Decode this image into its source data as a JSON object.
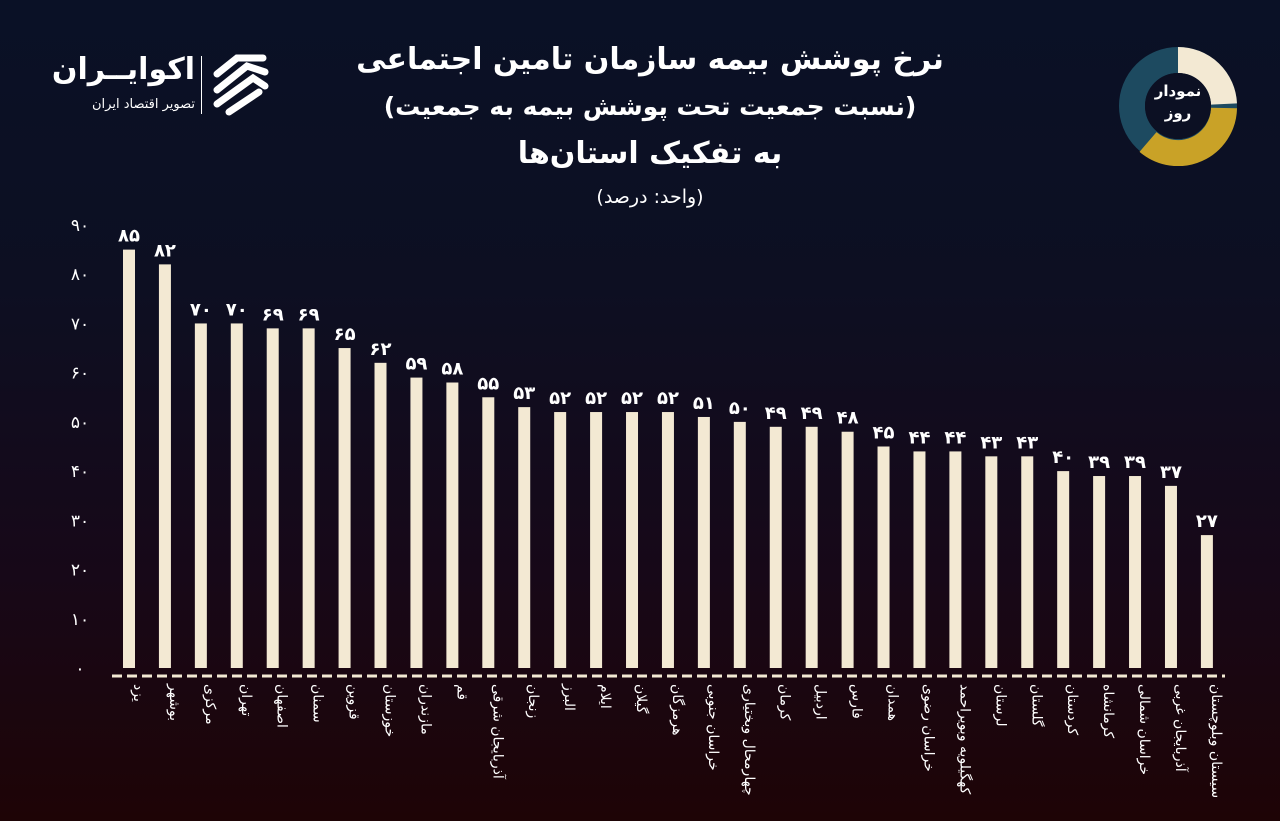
{
  "header": {
    "title_line1": "نرخ پوشش بیمه سازمان تامین اجتماعی",
    "title_line2": "(نسبت جمعیت تحت پوشش بیمه به جمعیت)",
    "title_line3": "به تفکیک استان‌ها",
    "unit": "(واحد: درصد)"
  },
  "logo": {
    "name": "اکوایــران",
    "tagline": "تصویر اقتصاد ایران"
  },
  "badge": {
    "line1": "نمودار",
    "line2": "روز"
  },
  "colors": {
    "bar": "#f3e9d3",
    "badge_cream": "#f3e9d3",
    "badge_gold": "#c9a227",
    "badge_teal": "#1d4a60"
  },
  "chart_data": {
    "type": "bar",
    "title": "نرخ پوشش بیمه سازمان تامین اجتماعی (نسبت جمعیت تحت پوشش بیمه به جمعیت) به تفکیک استان‌ها",
    "ylabel": "(واحد: درصد)",
    "ylim": [
      0,
      90
    ],
    "yticks": [
      0,
      10,
      20,
      30,
      40,
      50,
      60,
      70,
      80,
      90
    ],
    "grid": false,
    "digits": "persian",
    "categories": [
      "یزد",
      "بوشهر",
      "مرکزی",
      "تهران",
      "اصفهان",
      "سمنان",
      "قزوین",
      "خوزستان",
      "مازندران",
      "قم",
      "آذربایجان شرقی",
      "زنجان",
      "البرز",
      "ایلام",
      "گیلان",
      "هرمزگان",
      "خراسان جنوبی",
      "چهارمحال وبختیاری",
      "کرمان",
      "اردبیل",
      "فارس",
      "همدان",
      "خراسان رضوی",
      "کهگیلویه وبویراحمد",
      "لرستان",
      "گلستان",
      "کردستان",
      "کرمانشاه",
      "خراسان شمالی",
      "آذربایجان غربی",
      "سیستان وبلوچستان"
    ],
    "values": [
      85,
      82,
      70,
      70,
      69,
      69,
      65,
      62,
      59,
      58,
      55,
      53,
      52,
      52,
      52,
      52,
      51,
      50,
      49,
      49,
      48,
      45,
      44,
      44,
      43,
      43,
      40,
      39,
      39,
      37,
      27
    ]
  }
}
